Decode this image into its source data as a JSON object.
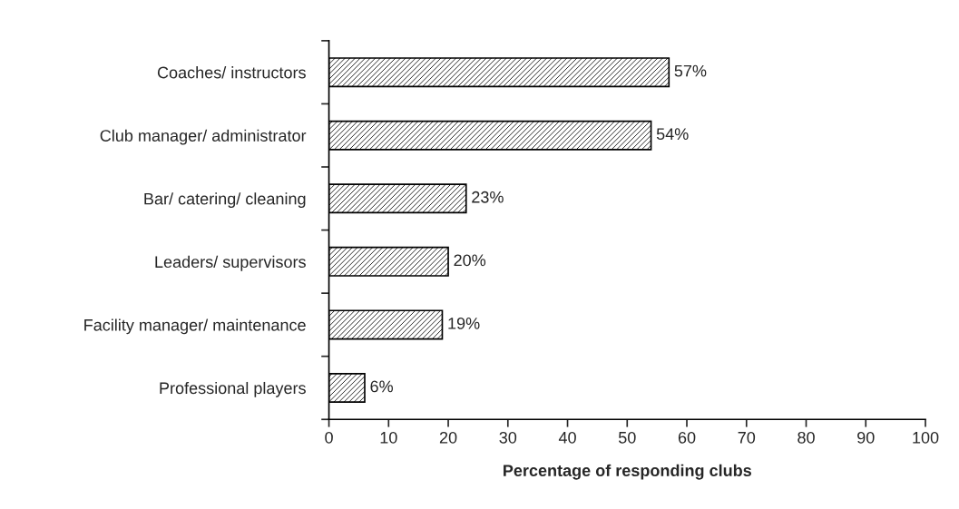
{
  "chart_data": {
    "type": "bar",
    "orientation": "horizontal",
    "categories": [
      "Coaches/ instructors",
      "Club manager/ administrator",
      "Bar/ catering/ cleaning",
      "Leaders/ supervisors",
      "Facility manager/ maintenance",
      "Professional players"
    ],
    "values": [
      57,
      54,
      23,
      20,
      19,
      6
    ],
    "value_labels": [
      "57%",
      "54%",
      "23%",
      "20%",
      "19%",
      "6%"
    ],
    "color": "#000000",
    "xlabel": "Percentage of responding clubs",
    "xlim": [
      0,
      100
    ],
    "xticks": [
      0,
      10,
      20,
      30,
      40,
      50,
      60,
      70,
      80,
      90,
      100
    ],
    "grid": false,
    "legend": false
  }
}
